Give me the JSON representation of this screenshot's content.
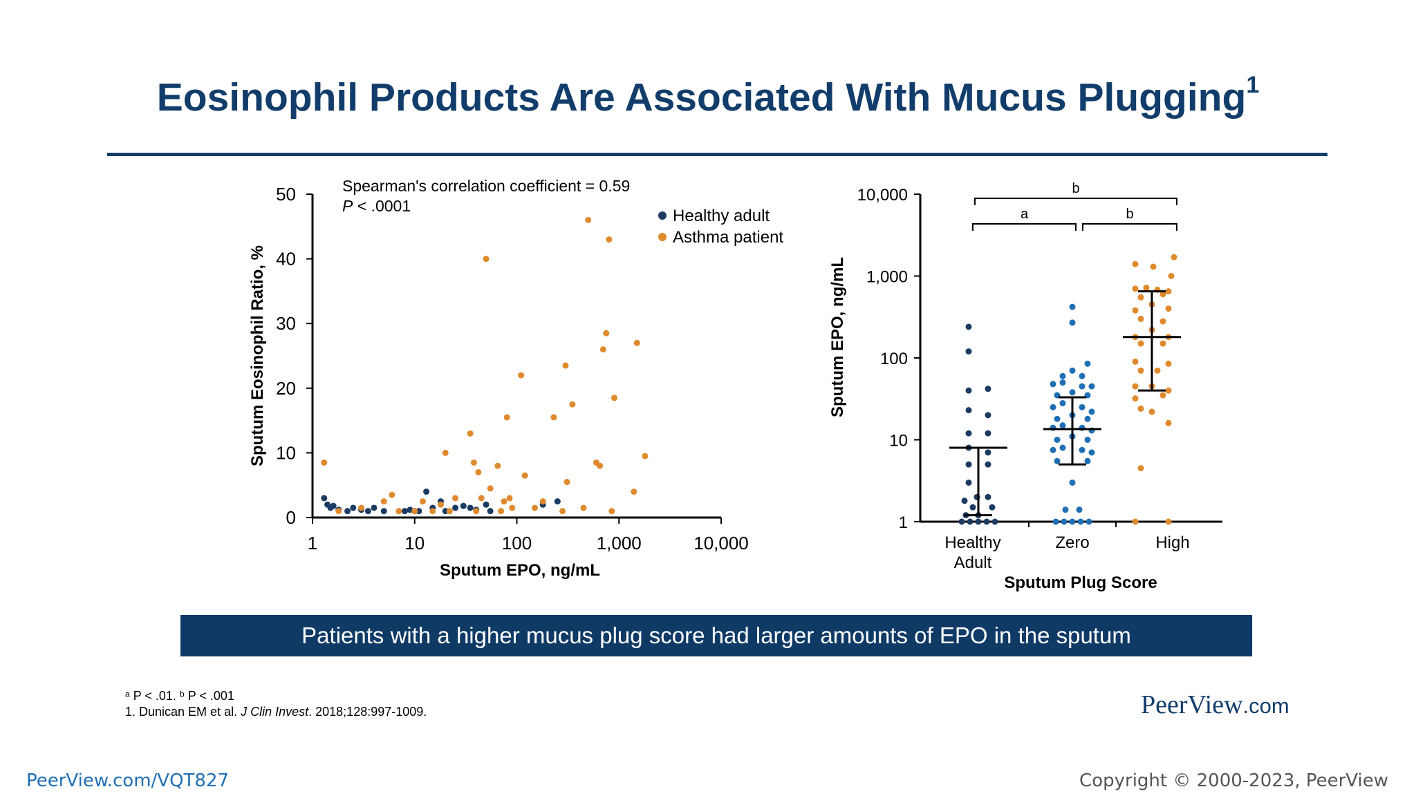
{
  "slide": {
    "title": "Eosinophil Products Are Associated With Mucus Plugging",
    "title_sup": "1",
    "banner": "Patients with a higher mucus plug score had larger amounts of EPO in the sputum",
    "footnote_sig": "ᵃ P < .01. ᵇ P < .001",
    "footnote_ref_pre": "1. Dunican EM et al. ",
    "footnote_ref_journal": "J Clin Invest",
    "footnote_ref_post": ". 2018;128:997-1009.",
    "brand_name": "PeerView",
    "brand_domain": ".com",
    "url": "PeerView.com/VQT827",
    "copyright": "Copyright © 2000-2023, PeerView"
  },
  "colors": {
    "title": "#123d6b",
    "healthy": "#1b3b62",
    "asthma": "#e08a2e",
    "zero_group": "#1f6fb5",
    "banner": "#0f3a66"
  },
  "chart_data": [
    {
      "type": "scatter",
      "xscale": "log",
      "xlim": [
        1,
        10000
      ],
      "ylim": [
        0,
        50
      ],
      "xticks": [
        1,
        10,
        100,
        1000,
        10000
      ],
      "xtick_labels": [
        "1",
        "10",
        "100",
        "1,000",
        "10,000"
      ],
      "yticks": [
        0,
        10,
        20,
        30,
        40,
        50
      ],
      "ytick_labels": [
        "0",
        "10",
        "20",
        "30",
        "40",
        "50"
      ],
      "xlabel": "Sputum EPO, ng/mL",
      "ylabel": "Sputum Eosinophil Ratio, %",
      "annotation_line1": "Spearman's correlation coefficient = 0.59",
      "annotation_line2_italic": "P",
      "annotation_line2_rest": " < .0001",
      "legend_position": "top-right",
      "series": [
        {
          "name": "Healthy adult",
          "color": "#1b3b62",
          "points": [
            [
              1.3,
              3
            ],
            [
              1.4,
              2
            ],
            [
              1.5,
              1.5
            ],
            [
              1.6,
              1.8
            ],
            [
              1.8,
              1.2
            ],
            [
              2.2,
              1
            ],
            [
              2.5,
              1.5
            ],
            [
              3,
              1.2
            ],
            [
              3.5,
              1
            ],
            [
              4,
              1.5
            ],
            [
              5,
              1
            ],
            [
              8,
              1
            ],
            [
              9,
              1.2
            ],
            [
              10,
              1
            ],
            [
              11,
              1
            ],
            [
              13,
              4
            ],
            [
              15,
              1.5
            ],
            [
              18,
              2.5
            ],
            [
              20,
              1
            ],
            [
              25,
              1.5
            ],
            [
              30,
              1.8
            ],
            [
              35,
              1.5
            ],
            [
              40,
              1.2
            ],
            [
              50,
              2
            ],
            [
              55,
              1
            ],
            [
              180,
              2
            ],
            [
              250,
              2.5
            ]
          ]
        },
        {
          "name": "Asthma patient",
          "color": "#e08a2e",
          "points": [
            [
              1.3,
              8.5
            ],
            [
              1.8,
              1
            ],
            [
              3,
              1.5
            ],
            [
              5,
              2.5
            ],
            [
              6,
              3.5
            ],
            [
              7,
              1
            ],
            [
              10,
              1
            ],
            [
              12,
              2.5
            ],
            [
              15,
              1
            ],
            [
              18,
              2
            ],
            [
              20,
              10
            ],
            [
              22,
              1
            ],
            [
              25,
              3
            ],
            [
              35,
              13
            ],
            [
              38,
              8.5
            ],
            [
              40,
              1
            ],
            [
              42,
              7
            ],
            [
              45,
              3
            ],
            [
              50,
              40
            ],
            [
              55,
              4.5
            ],
            [
              65,
              8
            ],
            [
              70,
              1
            ],
            [
              75,
              2.5
            ],
            [
              80,
              15.5
            ],
            [
              85,
              3
            ],
            [
              90,
              1.5
            ],
            [
              110,
              22
            ],
            [
              120,
              6.5
            ],
            [
              150,
              1.5
            ],
            [
              180,
              2.5
            ],
            [
              230,
              15.5
            ],
            [
              280,
              1
            ],
            [
              300,
              23.5
            ],
            [
              310,
              5.5
            ],
            [
              350,
              17.5
            ],
            [
              450,
              1.5
            ],
            [
              500,
              46
            ],
            [
              600,
              8.5
            ],
            [
              650,
              8
            ],
            [
              700,
              26
            ],
            [
              750,
              28.5
            ],
            [
              800,
              43
            ],
            [
              850,
              1
            ],
            [
              900,
              18.5
            ],
            [
              1400,
              4
            ],
            [
              1500,
              27
            ],
            [
              1800,
              9.5
            ]
          ]
        }
      ]
    },
    {
      "type": "scatter",
      "subtype": "dot-plot with median and IQR bars",
      "yscale": "log",
      "ylim": [
        1,
        10000
      ],
      "yticks": [
        1,
        10,
        100,
        1000,
        10000
      ],
      "ytick_labels": [
        "1",
        "10",
        "100",
        "1,000",
        "10,000"
      ],
      "ylabel": "Sputum EPO, ng/mL",
      "xlabel": "Sputum Plug Score",
      "categories": [
        "Healthy Adult",
        "Zero",
        "High"
      ],
      "category_lines": [
        [
          "Healthy"
        ],
        [
          "Adult"
        ]
      ],
      "significance": [
        {
          "from": "Healthy Adult",
          "to": "Zero",
          "label": "a"
        },
        {
          "from": "Zero",
          "to": "High",
          "label": "b"
        },
        {
          "from": "Healthy Adult",
          "to": "High",
          "label": "b"
        }
      ],
      "groups": [
        {
          "name": "Healthy Adult",
          "color": "#1b3b62",
          "median": 8,
          "q1": 1.2,
          "q3": 8,
          "points": [
            [
              -14,
              240
            ],
            [
              -14,
              120
            ],
            [
              -14,
              40
            ],
            [
              14,
              42
            ],
            [
              -14,
              23
            ],
            [
              14,
              20
            ],
            [
              -14,
              12
            ],
            [
              14,
              12
            ],
            [
              -14,
              8
            ],
            [
              14,
              7
            ],
            [
              -14,
              5
            ],
            [
              14,
              5
            ],
            [
              -14,
              3
            ],
            [
              -2,
              2
            ],
            [
              14,
              2
            ],
            [
              -20,
              1.8
            ],
            [
              -8,
              1.5
            ],
            [
              20,
              1.5
            ],
            [
              -18,
              1.2
            ],
            [
              0,
              1.2
            ],
            [
              -24,
              1
            ],
            [
              -12,
              1
            ],
            [
              0,
              1
            ],
            [
              12,
              1
            ],
            [
              24,
              1
            ]
          ]
        },
        {
          "name": "Zero",
          "color": "#1f6fb5",
          "median": 13.5,
          "q1": 5,
          "q3": 33,
          "points": [
            [
              0,
              420
            ],
            [
              0,
              270
            ],
            [
              22,
              85
            ],
            [
              -14,
              60
            ],
            [
              0,
              70
            ],
            [
              14,
              60
            ],
            [
              -28,
              48
            ],
            [
              -14,
              50
            ],
            [
              14,
              45
            ],
            [
              28,
              45
            ],
            [
              -22,
              35
            ],
            [
              0,
              38
            ],
            [
              22,
              35
            ],
            [
              -28,
              25
            ],
            [
              -14,
              28
            ],
            [
              14,
              25
            ],
            [
              28,
              22
            ],
            [
              -22,
              18
            ],
            [
              0,
              20
            ],
            [
              22,
              18
            ],
            [
              -28,
              14
            ],
            [
              -14,
              15
            ],
            [
              14,
              14
            ],
            [
              28,
              13
            ],
            [
              -22,
              10
            ],
            [
              0,
              11
            ],
            [
              22,
              10
            ],
            [
              -28,
              7.5
            ],
            [
              -14,
              8
            ],
            [
              14,
              7.5
            ],
            [
              28,
              7
            ],
            [
              -22,
              5.5
            ],
            [
              22,
              5.5
            ],
            [
              0,
              3
            ],
            [
              -10,
              1.4
            ],
            [
              10,
              1.4
            ],
            [
              -24,
              1
            ],
            [
              -12,
              1
            ],
            [
              0,
              1
            ],
            [
              12,
              1
            ],
            [
              24,
              1
            ]
          ]
        },
        {
          "name": "High",
          "color": "#e08a2e",
          "median": 180,
          "q1": 40,
          "q3": 650,
          "points": [
            [
              32,
              1700
            ],
            [
              -24,
              1400
            ],
            [
              2,
              1300
            ],
            [
              28,
              1000
            ],
            [
              -24,
              700
            ],
            [
              -8,
              720
            ],
            [
              8,
              680
            ],
            [
              24,
              650
            ],
            [
              -16,
              550
            ],
            [
              16,
              600
            ],
            [
              0,
              450
            ],
            [
              -24,
              380
            ],
            [
              24,
              400
            ],
            [
              -16,
              300
            ],
            [
              16,
              280
            ],
            [
              0,
              220
            ],
            [
              -24,
              180
            ],
            [
              24,
              180
            ],
            [
              -16,
              150
            ],
            [
              16,
              150
            ],
            [
              -24,
              90
            ],
            [
              24,
              85
            ],
            [
              -16,
              70
            ],
            [
              8,
              70
            ],
            [
              -24,
              45
            ],
            [
              0,
              45
            ],
            [
              24,
              40
            ],
            [
              -24,
              32
            ],
            [
              16,
              35
            ],
            [
              -16,
              24
            ],
            [
              0,
              22
            ],
            [
              24,
              16
            ],
            [
              -16,
              4.5
            ],
            [
              -24,
              1
            ],
            [
              24,
              1
            ]
          ]
        }
      ]
    }
  ]
}
